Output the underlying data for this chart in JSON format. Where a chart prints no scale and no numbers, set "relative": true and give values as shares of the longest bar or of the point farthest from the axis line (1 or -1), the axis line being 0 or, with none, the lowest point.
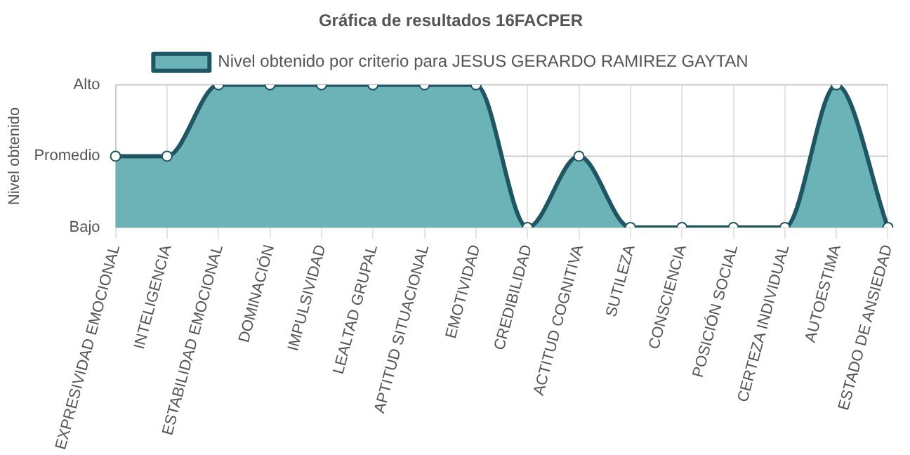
{
  "chart_data": {
    "type": "area",
    "title": "Gráfica de resultados 16FACPER",
    "ylabel": "Nivel obtenido",
    "categories": [
      "EXPRESIVIDAD EMOCIONAL",
      "INTELIGENCIA",
      "ESTABILIDAD EMOCIONAL",
      "DOMINACIÓN",
      "IMPULSIVIDAD",
      "LEALTAD GRUPAL",
      "APTITUD SITUACIONAL",
      "EMOTIVIDAD",
      "CREDIBILIDAD",
      "ACTITUD COGNITIVA",
      "SUTILEZA",
      "CONSCIENCIA",
      "POSICIÓN SOCIAL",
      "CERTEZA INDIVIDUAL",
      "AUTOESTIMA",
      "ESTADO DE ANSIEDAD"
    ],
    "series": [
      {
        "name": "Nivel obtenido por criterio para JESUS GERARDO RAMIREZ GAYTAN",
        "color": "#6bb3b7",
        "values": [
          0.5,
          0.5,
          1,
          1,
          1,
          1,
          1,
          1,
          0,
          0.5,
          0,
          0,
          0,
          0,
          1,
          0
        ]
      }
    ],
    "relative": true,
    "ref_lines": [
      {
        "axis": "y",
        "value": 1,
        "label": "Alto",
        "color": "#cfcfcf"
      },
      {
        "axis": "y",
        "value": 0.5,
        "label": "Promedio",
        "color": "#cfcfcf"
      },
      {
        "axis": "y",
        "value": 0,
        "label": "Bajo",
        "color": "#cfcfcf"
      }
    ],
    "grid": "x",
    "legend": "top",
    "marker": "circle"
  }
}
